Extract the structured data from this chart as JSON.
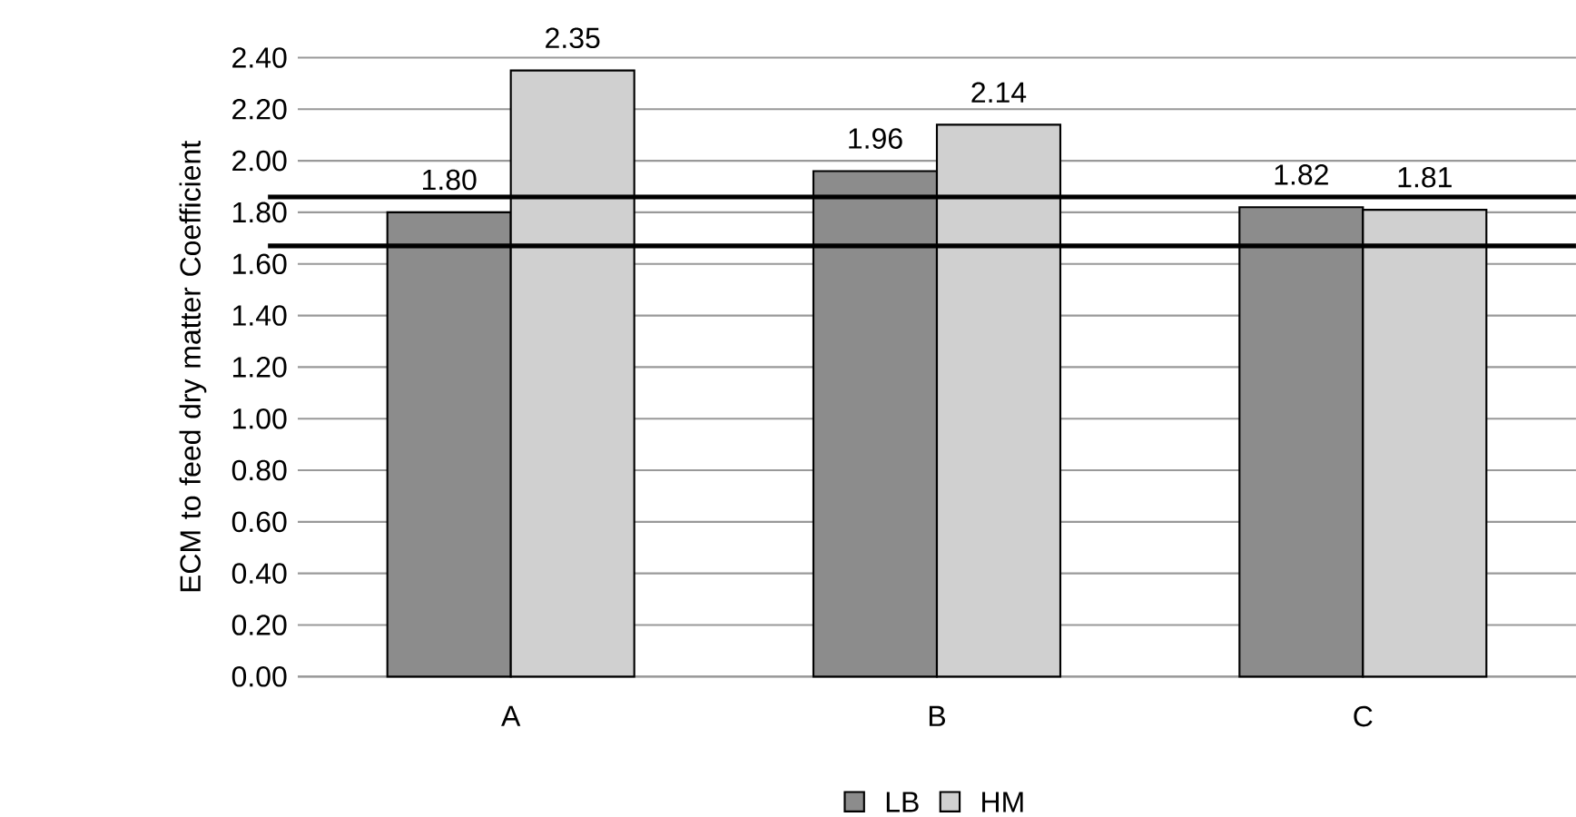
{
  "chart_data": {
    "type": "bar",
    "ylabel": "ECM to  feed dry matter Coefficient",
    "categories": [
      "A",
      "B",
      "C"
    ],
    "series": [
      {
        "name": "LB",
        "color": "#8c8c8c",
        "values": [
          1.8,
          1.96,
          1.82
        ],
        "value_labels": [
          "1.80",
          "1.96",
          "1.82"
        ]
      },
      {
        "name": "HM",
        "color": "#d0d0d0",
        "values": [
          2.35,
          2.14,
          1.81
        ],
        "value_labels": [
          "2.35",
          "2.14",
          "1.81"
        ]
      }
    ],
    "ylim": [
      0,
      2.4
    ],
    "yticks": [
      {
        "value": 0,
        "label": "0.00"
      },
      {
        "value": 0.2,
        "label": "0.20"
      },
      {
        "value": 0.4,
        "label": "0.40"
      },
      {
        "value": 0.6,
        "label": "0.60"
      },
      {
        "value": 0.8,
        "label": "0.80"
      },
      {
        "value": 1.0,
        "label": "1.00"
      },
      {
        "value": 1.2,
        "label": "1.20"
      },
      {
        "value": 1.4,
        "label": "1.40"
      },
      {
        "value": 1.6,
        "label": "1.60"
      },
      {
        "value": 1.8,
        "label": "1.80"
      },
      {
        "value": 2.0,
        "label": "2.00"
      },
      {
        "value": 2.2,
        "label": "2.20"
      },
      {
        "value": 2.4,
        "label": "2.40"
      }
    ],
    "ref_lines": [
      {
        "axis": "y",
        "value": 1.86,
        "color": "#000000"
      },
      {
        "axis": "y",
        "value": 1.67,
        "color": "#000000"
      }
    ],
    "grid": "y",
    "legend": "bottom"
  }
}
